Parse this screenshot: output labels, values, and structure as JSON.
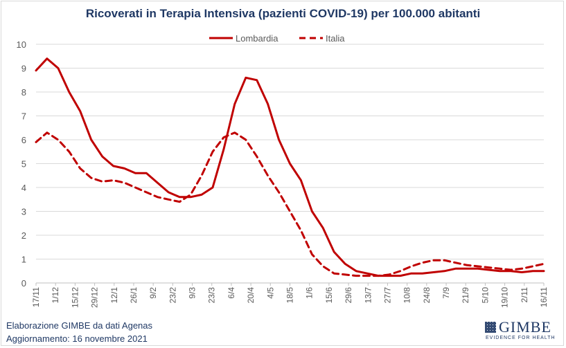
{
  "chart_data": {
    "type": "line",
    "title": "Ricoverati in Terapia Intensiva (pazienti COVID-19) per 100.000 abitanti",
    "ylim": [
      0,
      10
    ],
    "yticks": [
      0,
      1,
      2,
      3,
      4,
      5,
      6,
      7,
      8,
      9,
      10
    ],
    "x_tick_labels": [
      "17/11",
      "1/12",
      "15/12",
      "29/12",
      "12/1",
      "26/1",
      "9/2",
      "23/2",
      "9/3",
      "23/3",
      "6/4",
      "20/4",
      "4/5",
      "18/5",
      "1/6",
      "15/6",
      "29/6",
      "13/7",
      "27/7",
      "10/8",
      "24/8",
      "7/9",
      "21/9",
      "5/10",
      "19/10",
      "2/11",
      "16/11"
    ],
    "grid": "horizontal",
    "legend_position": "top-center",
    "series": [
      {
        "name": "Lombardia",
        "style": "solid",
        "color": "#c00000",
        "values": [
          8.9,
          9.4,
          9.0,
          8.0,
          7.2,
          6.0,
          5.3,
          4.9,
          4.8,
          4.6,
          4.6,
          4.2,
          3.8,
          3.6,
          3.6,
          3.7,
          4.0,
          5.6,
          7.5,
          8.6,
          8.5,
          7.5,
          6.0,
          5.0,
          4.3,
          3.0,
          2.3,
          1.3,
          0.8,
          0.5,
          0.4,
          0.3,
          0.3,
          0.3,
          0.4,
          0.4,
          0.45,
          0.5,
          0.6,
          0.6,
          0.6,
          0.55,
          0.5,
          0.5,
          0.45,
          0.5,
          0.5
        ]
      },
      {
        "name": "Italia",
        "style": "dashed",
        "color": "#c00000",
        "values": [
          5.9,
          6.3,
          6.0,
          5.5,
          4.8,
          4.4,
          4.25,
          4.3,
          4.2,
          4.0,
          3.8,
          3.6,
          3.5,
          3.4,
          3.7,
          4.5,
          5.5,
          6.1,
          6.3,
          6.0,
          5.3,
          4.5,
          3.8,
          3.0,
          2.2,
          1.2,
          0.7,
          0.4,
          0.35,
          0.3,
          0.3,
          0.3,
          0.35,
          0.5,
          0.7,
          0.85,
          0.95,
          0.95,
          0.85,
          0.75,
          0.7,
          0.65,
          0.6,
          0.55,
          0.6,
          0.7,
          0.8
        ]
      }
    ]
  },
  "footer": {
    "line1": "Elaborazione GIMBE da dati Agenas",
    "line2": "Aggiornamento: 16 novembre 2021"
  },
  "logo": {
    "name": "GIMBE",
    "tagline": "EVIDENCE FOR HEALTH"
  }
}
